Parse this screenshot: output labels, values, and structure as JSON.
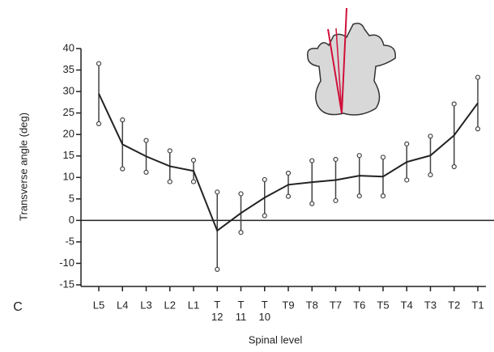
{
  "chart_data": {
    "type": "line",
    "panel_label": "C",
    "x_label": "Spinal level",
    "y_label": "Transverse angle (deg)",
    "categories": [
      "L5",
      "L4",
      "L3",
      "L2",
      "L1",
      "T 12",
      "T 11",
      "T 10",
      "T9",
      "T8",
      "T7",
      "T6",
      "T5",
      "T4",
      "T3",
      "T2",
      "T1"
    ],
    "series": [
      {
        "color": "#222222",
        "values": [
          29.5,
          17.7,
          14.9,
          12.6,
          11.5,
          -2.4,
          1.7,
          5.3,
          8.3,
          8.9,
          9.4,
          10.4,
          10.2,
          13.6,
          15.1,
          19.8,
          27.3
        ],
        "errors": [
          7,
          5.7,
          3.7,
          3.6,
          2.5,
          9,
          4.5,
          4.2,
          2.7,
          5,
          4.8,
          4.7,
          4.5,
          4.2,
          4.5,
          7.3,
          6
        ]
      }
    ],
    "ylim": [
      -15,
      40
    ],
    "yticks": [
      -15,
      -10,
      -5,
      0,
      5,
      10,
      15,
      20,
      25,
      30,
      35,
      40
    ]
  }
}
